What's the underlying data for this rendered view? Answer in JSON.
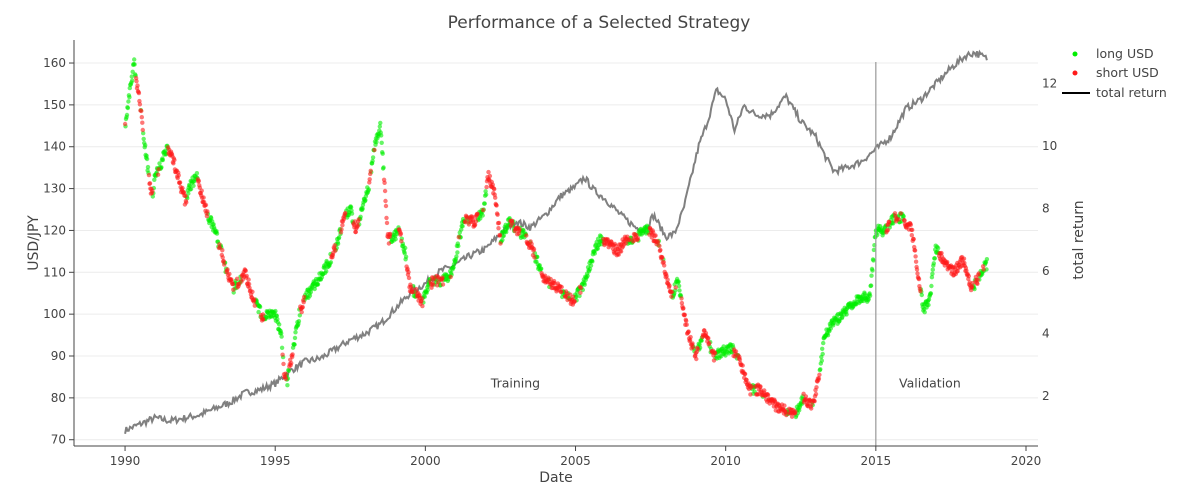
{
  "chart_data": {
    "type": "scatter",
    "title": "Performance of a Selected Strategy",
    "xlabel": "Date",
    "ylabel": "USD/JPY",
    "y2label": "total return",
    "xlim": [
      1988.3,
      2020.4
    ],
    "ylim": [
      68.5,
      165.5
    ],
    "y2lim": [
      0.4,
      13.4
    ],
    "x_ticks": [
      1990,
      1995,
      2000,
      2005,
      2010,
      2015,
      2020
    ],
    "y_ticks": [
      70,
      80,
      90,
      100,
      110,
      120,
      130,
      140,
      150,
      160
    ],
    "y2_ticks": [
      2,
      4,
      6,
      8,
      10,
      12
    ],
    "grid": true,
    "legend_position": "top-right",
    "colors": {
      "long": "#00ee00",
      "short": "#ff1a1a",
      "return_line": "#808080",
      "divider": "#999999"
    },
    "series": [
      {
        "name": "long USD",
        "kind": "markers"
      },
      {
        "name": "short USD",
        "kind": "markers"
      },
      {
        "name": "total return",
        "kind": "line"
      }
    ],
    "usdjpy": {
      "x": [
        1990.0,
        1990.2,
        1990.3,
        1990.5,
        1990.7,
        1990.9,
        1991.0,
        1991.2,
        1991.4,
        1991.6,
        1991.8,
        1992.0,
        1992.2,
        1992.4,
        1992.6,
        1992.8,
        1993.0,
        1993.2,
        1993.4,
        1993.6,
        1993.8,
        1994.0,
        1994.2,
        1994.4,
        1994.6,
        1994.8,
        1995.0,
        1995.2,
        1995.3,
        1995.4,
        1995.6,
        1995.8,
        1996.0,
        1996.3,
        1996.6,
        1996.9,
        1997.1,
        1997.3,
        1997.5,
        1997.7,
        1997.9,
        1998.1,
        1998.3,
        1998.5,
        1998.6,
        1998.75,
        1998.9,
        1999.1,
        1999.3,
        1999.5,
        1999.7,
        1999.9,
        2000.1,
        2000.3,
        2000.6,
        2000.9,
        2001.1,
        2001.3,
        2001.6,
        2001.9,
        2002.1,
        2002.3,
        2002.5,
        2002.8,
        2003.1,
        2003.4,
        2003.7,
        2004.0,
        2004.3,
        2004.6,
        2004.9,
        2005.2,
        2005.5,
        2005.8,
        2006.1,
        2006.4,
        2006.7,
        2007.0,
        2007.3,
        2007.5,
        2007.8,
        2008.0,
        2008.2,
        2008.4,
        2008.6,
        2008.8,
        2009.0,
        2009.3,
        2009.6,
        2009.9,
        2010.2,
        2010.5,
        2010.8,
        2011.1,
        2011.4,
        2011.7,
        2012.0,
        2012.3,
        2012.6,
        2012.9,
        2013.1,
        2013.3,
        2013.6,
        2013.9,
        2014.2,
        2014.5,
        2014.8,
        2015.0,
        2015.3,
        2015.6,
        2015.9,
        2016.2,
        2016.4,
        2016.6,
        2016.8,
        2017.0,
        2017.3,
        2017.6,
        2017.9,
        2018.2,
        2018.5,
        2018.7
      ],
      "y": [
        145,
        155,
        160,
        150,
        138,
        128,
        133,
        136,
        140,
        137,
        132,
        127,
        131,
        133,
        127,
        123,
        120,
        115,
        110,
        106,
        108,
        110,
        105,
        102,
        99,
        100,
        100,
        95,
        85,
        84,
        92,
        100,
        104,
        107,
        110,
        114,
        118,
        123,
        125,
        120,
        125,
        130,
        140,
        145,
        135,
        118,
        118,
        120,
        116,
        106,
        105,
        103,
        107,
        108,
        108,
        110,
        117,
        123,
        122,
        124,
        133,
        129,
        118,
        122,
        120,
        118,
        113,
        108,
        107,
        105,
        103,
        106,
        112,
        118,
        117,
        115,
        118,
        118,
        120,
        120,
        116,
        110,
        104,
        108,
        100,
        94,
        90,
        96,
        90,
        91,
        92,
        88,
        82,
        82,
        80,
        78,
        77,
        76,
        80,
        78,
        85,
        95,
        98,
        100,
        102,
        104,
        104,
        120,
        120,
        123,
        123,
        120,
        110,
        101,
        104,
        116,
        112,
        110,
        113,
        106,
        110,
        112
      ]
    },
    "total_return": {
      "x": [
        1990.0,
        1990.5,
        1991.0,
        1991.5,
        1992.0,
        1992.5,
        1993.0,
        1993.5,
        1994.0,
        1994.5,
        1995.0,
        1995.5,
        1996.0,
        1996.5,
        1997.0,
        1997.5,
        1998.0,
        1998.5,
        1999.0,
        1999.5,
        2000.0,
        2000.5,
        2001.0,
        2001.5,
        2002.0,
        2002.5,
        2003.0,
        2003.5,
        2004.0,
        2004.5,
        2005.0,
        2005.3,
        2005.6,
        2006.0,
        2006.5,
        2007.0,
        2007.3,
        2007.6,
        2008.0,
        2008.3,
        2008.6,
        2008.9,
        2009.1,
        2009.4,
        2009.7,
        2010.0,
        2010.3,
        2010.6,
        2011.0,
        2011.5,
        2012.0,
        2012.5,
        2013.0,
        2013.3,
        2013.6,
        2014.0,
        2014.5,
        2015.0,
        2015.5,
        2016.0,
        2016.5,
        2017.0,
        2017.5,
        2018.0,
        2018.3,
        2018.7
      ],
      "y": [
        0.9,
        1.1,
        1.3,
        1.2,
        1.3,
        1.4,
        1.6,
        1.8,
        2.1,
        2.2,
        2.4,
        2.8,
        3.1,
        3.2,
        3.5,
        3.8,
        4.0,
        4.3,
        4.8,
        5.3,
        5.6,
        6.0,
        6.2,
        6.5,
        6.7,
        7.2,
        7.6,
        7.4,
        7.8,
        8.4,
        8.7,
        9.0,
        8.6,
        8.3,
        7.8,
        7.4,
        7.3,
        7.8,
        7.1,
        7.2,
        8.0,
        9.2,
        10.0,
        10.8,
        11.8,
        11.5,
        10.5,
        11.3,
        11.0,
        11.0,
        11.6,
        10.8,
        10.3,
        9.7,
        9.2,
        9.3,
        9.5,
        9.9,
        10.3,
        11.2,
        11.5,
        12.0,
        12.5,
        12.9,
        13.0,
        12.8
      ]
    },
    "annotations": [
      {
        "text": "Training",
        "x": 2003.0,
        "y": 82.5
      },
      {
        "text": "Validation",
        "x": 2016.8,
        "y": 82.5
      }
    ],
    "divider_x": 2015.0
  }
}
